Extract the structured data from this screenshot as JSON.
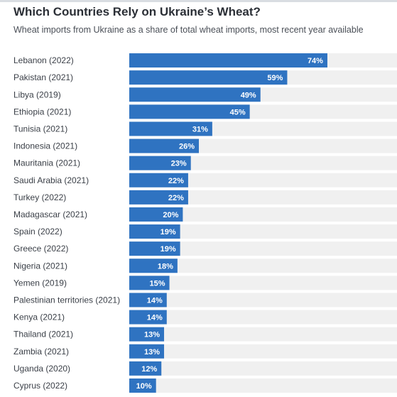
{
  "chart_data": {
    "type": "bar",
    "orientation": "horizontal",
    "title": "Which Countries Rely on Ukraine’s Wheat?",
    "subtitle": "Wheat imports from Ukraine as a share of total wheat imports, most recent year available",
    "categories": [
      "Lebanon (2022)",
      "Pakistan (2021)",
      "Libya (2019)",
      "Ethiopia (2021)",
      "Tunisia (2021)",
      "Indonesia (2021)",
      "Mauritania (2021)",
      "Saudi Arabia (2021)",
      "Turkey (2022)",
      "Madagascar (2021)",
      "Spain (2022)",
      "Greece (2022)",
      "Nigeria (2021)",
      "Yemen (2019)",
      "Palestinian territories (2021)",
      "Kenya (2021)",
      "Thailand (2021)",
      "Zambia (2021)",
      "Uganda (2020)",
      "Cyprus (2022)"
    ],
    "values": [
      74,
      59,
      49,
      45,
      31,
      26,
      23,
      22,
      22,
      20,
      19,
      19,
      18,
      15,
      14,
      14,
      13,
      13,
      12,
      10
    ],
    "value_labels": [
      "74%",
      "59%",
      "49%",
      "45%",
      "31%",
      "26%",
      "23%",
      "22%",
      "22%",
      "20%",
      "19%",
      "19%",
      "18%",
      "15%",
      "14%",
      "14%",
      "13%",
      "13%",
      "12%",
      "10%"
    ],
    "xlim": [
      0,
      100
    ],
    "colors": {
      "bar": "#2f73c1",
      "track": "#f0f0f0",
      "rule": "#d9dde2"
    }
  }
}
